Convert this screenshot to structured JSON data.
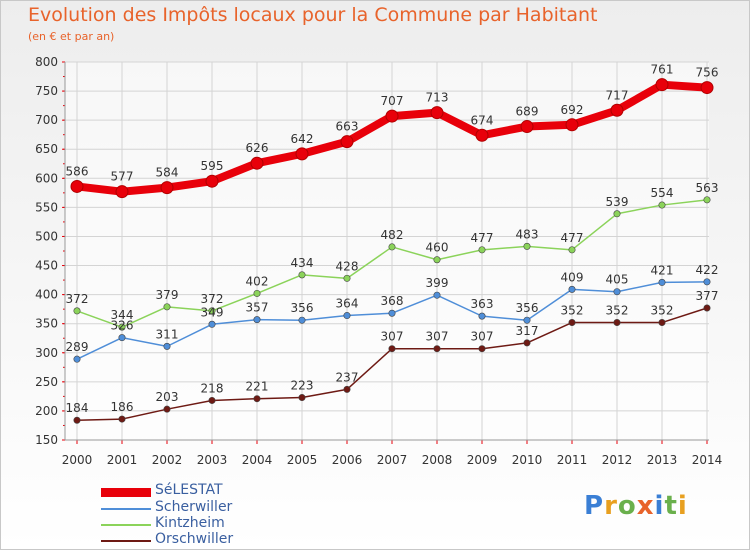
{
  "title": "Evolution des Impôts locaux pour la Commune par Habitant",
  "subtitle": "(en € et par an)",
  "logo": "Proxiti",
  "chart_data": {
    "type": "line",
    "title": "Evolution des Impôts locaux pour la Commune par Habitant",
    "subtitle": "(en € et par an)",
    "x": [
      "2000",
      "2001",
      "2002",
      "2003",
      "2004",
      "2005",
      "2006",
      "2007",
      "2008",
      "2009",
      "2010",
      "2011",
      "2012",
      "2013",
      "2014"
    ],
    "ylim": [
      150,
      800
    ],
    "yticks": [
      "150",
      "200",
      "250",
      "300",
      "350",
      "400",
      "450",
      "500",
      "550",
      "600",
      "650",
      "700",
      "750",
      "800"
    ],
    "grid": true,
    "legend_position": "bottom-left",
    "series": [
      {
        "name": "SéLESTAT",
        "color": "#e8000a",
        "values": [
          586,
          577,
          584,
          595,
          626,
          642,
          663,
          707,
          713,
          674,
          689,
          692,
          717,
          761,
          756
        ],
        "labels": [
          "586",
          "577",
          "584",
          "595",
          "626",
          "642",
          "663",
          "707",
          "713",
          "674",
          "689",
          "692",
          "717",
          "761",
          "756"
        ]
      },
      {
        "name": "Scherwiller",
        "color": "#4f8ed8",
        "values": [
          289,
          326,
          311,
          349,
          357,
          356,
          364,
          368,
          399,
          363,
          356,
          409,
          405,
          421,
          422
        ],
        "labels": [
          "289",
          "326",
          "311",
          "349",
          "357",
          "356",
          "364",
          "368",
          "399",
          "363",
          "356",
          "409",
          "405",
          "421",
          "422"
        ]
      },
      {
        "name": "Kintzheim",
        "color": "#8bd35a",
        "values": [
          372,
          344,
          379,
          372,
          402,
          434,
          428,
          482,
          460,
          477,
          483,
          477,
          539,
          554,
          563
        ],
        "labels": [
          "372",
          "344",
          "379",
          "372",
          "402",
          "434",
          "428",
          "482",
          "460",
          "477",
          "483",
          "477",
          "539",
          "554",
          "563"
        ]
      },
      {
        "name": "Orschwiller",
        "color": "#6e1a14",
        "values": [
          184,
          186,
          203,
          218,
          221,
          223,
          237,
          307,
          307,
          307,
          317,
          352,
          352,
          352,
          377
        ],
        "labels": [
          "184",
          "186",
          "203",
          "218",
          "221",
          "223",
          "237",
          "307",
          "307",
          "307",
          "317",
          "352",
          "352",
          "352",
          "377"
        ]
      }
    ]
  }
}
